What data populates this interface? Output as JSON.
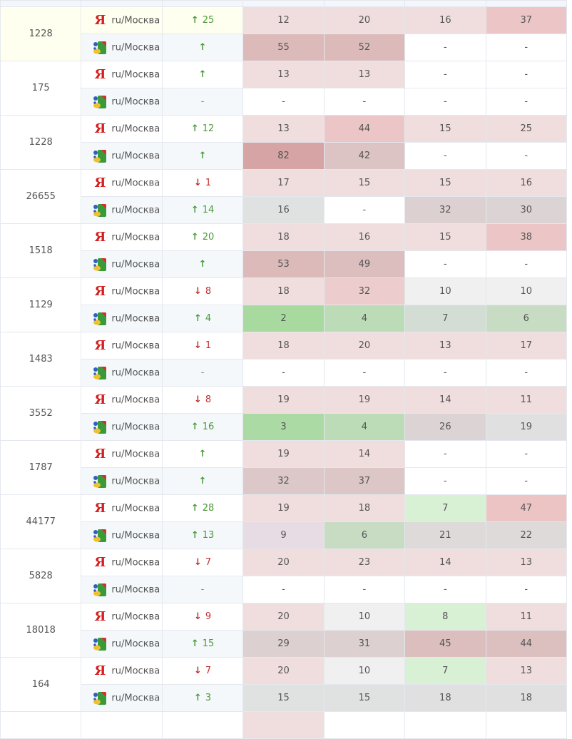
{
  "engine_label": "ru/Москва",
  "yandex_glyph": "Я",
  "groups": [
    {
      "id": "1228",
      "highlight": true,
      "rows": [
        {
          "engine": "yandex",
          "dir": "up",
          "change": "25",
          "cells": [
            [
              "12",
              "#f0dede"
            ],
            [
              "20",
              "#f0dede"
            ],
            [
              "16",
              "#f0dede"
            ],
            [
              "37",
              "#ecc6c6"
            ]
          ]
        },
        {
          "engine": "google",
          "dir": "up",
          "change": "",
          "cells": [
            [
              "55",
              "#dcbaba"
            ],
            [
              "52",
              "#dcbaba"
            ],
            [
              "-",
              ""
            ],
            [
              "-",
              ""
            ]
          ]
        }
      ]
    },
    {
      "id": "175",
      "rows": [
        {
          "engine": "yandex",
          "dir": "up",
          "change": "",
          "cells": [
            [
              "13",
              "#f0dede"
            ],
            [
              "13",
              "#f0dede"
            ],
            [
              "-",
              ""
            ],
            [
              "-",
              ""
            ]
          ]
        },
        {
          "engine": "google",
          "dir": "none",
          "change": "-",
          "cells": [
            [
              "-",
              ""
            ],
            [
              "-",
              ""
            ],
            [
              "-",
              ""
            ],
            [
              "-",
              ""
            ]
          ]
        }
      ]
    },
    {
      "id": "1228",
      "rows": [
        {
          "engine": "yandex",
          "dir": "up",
          "change": "12",
          "cells": [
            [
              "13",
              "#f0dede"
            ],
            [
              "44",
              "#ecc6c6"
            ],
            [
              "15",
              "#f0dede"
            ],
            [
              "25",
              "#f0dede"
            ]
          ]
        },
        {
          "engine": "google",
          "dir": "up",
          "change": "",
          "cells": [
            [
              "82",
              "#d6a4a4"
            ],
            [
              "42",
              "#dcc4c4"
            ],
            [
              "-",
              ""
            ],
            [
              "-",
              ""
            ]
          ]
        }
      ]
    },
    {
      "id": "26655",
      "rows": [
        {
          "engine": "yandex",
          "dir": "down",
          "change": "1",
          "cells": [
            [
              "17",
              "#f0dede"
            ],
            [
              "15",
              "#f0dede"
            ],
            [
              "15",
              "#f0dede"
            ],
            [
              "16",
              "#f0dede"
            ]
          ]
        },
        {
          "engine": "google",
          "dir": "up",
          "change": "14",
          "cells": [
            [
              "16",
              "#e0e2e2"
            ],
            [
              "-",
              ""
            ],
            [
              "32",
              "#dcd0d0"
            ],
            [
              "30",
              "#dcd4d4"
            ]
          ]
        }
      ]
    },
    {
      "id": "1518",
      "rows": [
        {
          "engine": "yandex",
          "dir": "up",
          "change": "20",
          "cells": [
            [
              "18",
              "#f0dede"
            ],
            [
              "16",
              "#f0dede"
            ],
            [
              "15",
              "#f0dede"
            ],
            [
              "38",
              "#ecc6c6"
            ]
          ]
        },
        {
          "engine": "google",
          "dir": "up",
          "change": "",
          "cells": [
            [
              "53",
              "#dcbaba"
            ],
            [
              "49",
              "#dcbebe"
            ],
            [
              "-",
              ""
            ],
            [
              "-",
              ""
            ]
          ]
        }
      ]
    },
    {
      "id": "1129",
      "rows": [
        {
          "engine": "yandex",
          "dir": "down",
          "change": "8",
          "cells": [
            [
              "18",
              "#f0dede"
            ],
            [
              "32",
              "#eccccc"
            ],
            [
              "10",
              "#f0f0f0"
            ],
            [
              "10",
              "#f0f0f0"
            ]
          ]
        },
        {
          "engine": "google",
          "dir": "up",
          "change": "4",
          "cells": [
            [
              "2",
              "#a8daa0"
            ],
            [
              "4",
              "#bcdcb8"
            ],
            [
              "7",
              "#d4ddd4"
            ],
            [
              "6",
              "#c8dcc4"
            ]
          ]
        }
      ]
    },
    {
      "id": "1483",
      "rows": [
        {
          "engine": "yandex",
          "dir": "down",
          "change": "1",
          "cells": [
            [
              "18",
              "#f0dede"
            ],
            [
              "20",
              "#f0dede"
            ],
            [
              "13",
              "#f0dede"
            ],
            [
              "17",
              "#f0dede"
            ]
          ]
        },
        {
          "engine": "google",
          "dir": "none",
          "change": "-",
          "cells": [
            [
              "-",
              ""
            ],
            [
              "-",
              ""
            ],
            [
              "-",
              ""
            ],
            [
              "-",
              ""
            ]
          ]
        }
      ]
    },
    {
      "id": "3552",
      "rows": [
        {
          "engine": "yandex",
          "dir": "down",
          "change": "8",
          "cells": [
            [
              "19",
              "#f0dede"
            ],
            [
              "19",
              "#f0dede"
            ],
            [
              "14",
              "#f0dede"
            ],
            [
              "11",
              "#f0dede"
            ]
          ]
        },
        {
          "engine": "google",
          "dir": "up",
          "change": "16",
          "cells": [
            [
              "3",
              "#acdaa4"
            ],
            [
              "4",
              "#bcdcb8"
            ],
            [
              "26",
              "#dcd4d4"
            ],
            [
              "19",
              "#e0e0e0"
            ]
          ]
        }
      ]
    },
    {
      "id": "1787",
      "rows": [
        {
          "engine": "yandex",
          "dir": "up",
          "change": "",
          "cells": [
            [
              "19",
              "#f0dede"
            ],
            [
              "14",
              "#f0dede"
            ],
            [
              "-",
              ""
            ],
            [
              "-",
              ""
            ]
          ]
        },
        {
          "engine": "google",
          "dir": "up",
          "change": "",
          "cells": [
            [
              "32",
              "#dcc8c8"
            ],
            [
              "37",
              "#dcc6c6"
            ],
            [
              "-",
              ""
            ],
            [
              "-",
              ""
            ]
          ]
        }
      ]
    },
    {
      "id": "44177",
      "rows": [
        {
          "engine": "yandex",
          "dir": "up",
          "change": "28",
          "cells": [
            [
              "19",
              "#f0dede"
            ],
            [
              "18",
              "#f0dede"
            ],
            [
              "7",
              "#d8f0d4"
            ],
            [
              "47",
              "#ecc4c4"
            ]
          ]
        },
        {
          "engine": "google",
          "dir": "up",
          "change": "13",
          "cells": [
            [
              "9",
              "#e8dce4"
            ],
            [
              "6",
              "#c8dcc4"
            ],
            [
              "21",
              "#dedada"
            ],
            [
              "22",
              "#dedada"
            ]
          ]
        }
      ]
    },
    {
      "id": "5828",
      "rows": [
        {
          "engine": "yandex",
          "dir": "down",
          "change": "7",
          "cells": [
            [
              "20",
              "#f0dede"
            ],
            [
              "23",
              "#f0dede"
            ],
            [
              "14",
              "#f0dede"
            ],
            [
              "13",
              "#f0dede"
            ]
          ]
        },
        {
          "engine": "google",
          "dir": "none",
          "change": "-",
          "cells": [
            [
              "-",
              ""
            ],
            [
              "-",
              ""
            ],
            [
              "-",
              ""
            ],
            [
              "-",
              ""
            ]
          ]
        }
      ]
    },
    {
      "id": "18018",
      "rows": [
        {
          "engine": "yandex",
          "dir": "down",
          "change": "9",
          "cells": [
            [
              "20",
              "#f0dede"
            ],
            [
              "10",
              "#f0f0f0"
            ],
            [
              "8",
              "#d8f0d4"
            ],
            [
              "11",
              "#f0dede"
            ]
          ]
        },
        {
          "engine": "google",
          "dir": "up",
          "change": "15",
          "cells": [
            [
              "29",
              "#dcd0d0"
            ],
            [
              "31",
              "#dcd0d0"
            ],
            [
              "45",
              "#dcbebe"
            ],
            [
              "44",
              "#dcc0c0"
            ]
          ]
        }
      ]
    },
    {
      "id": "164",
      "rows": [
        {
          "engine": "yandex",
          "dir": "down",
          "change": "7",
          "cells": [
            [
              "20",
              "#f0dede"
            ],
            [
              "10",
              "#f0f0f0"
            ],
            [
              "7",
              "#d8f0d4"
            ],
            [
              "13",
              "#f0dede"
            ]
          ]
        },
        {
          "engine": "google",
          "dir": "up",
          "change": "3",
          "cells": [
            [
              "15",
              "#e0e2e2"
            ],
            [
              "15",
              "#e0e2e2"
            ],
            [
              "18",
              "#e0e0e0"
            ],
            [
              "18",
              "#e0e0e0"
            ]
          ]
        }
      ]
    }
  ]
}
